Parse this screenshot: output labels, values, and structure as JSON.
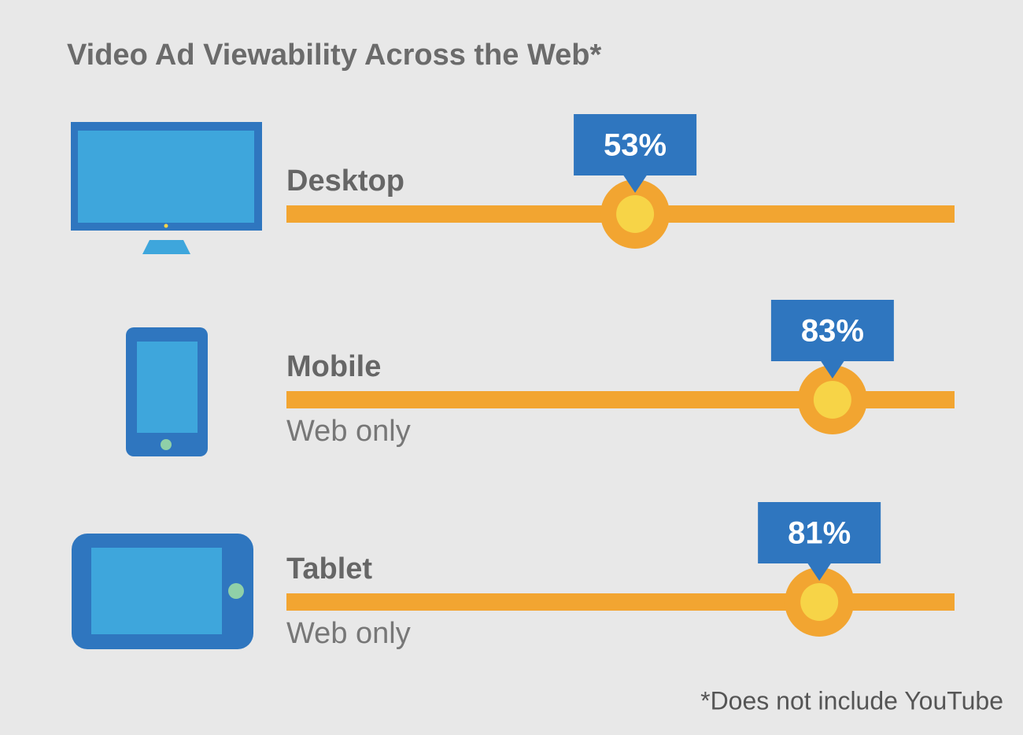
{
  "chart_data": {
    "type": "dot",
    "title": "Video Ad Viewability Across the Web*",
    "categories": [
      "Desktop",
      "Mobile",
      "Tablet"
    ],
    "notes": [
      null,
      "Web only",
      "Web only"
    ],
    "values": [
      53,
      83,
      81
    ],
    "value_labels": [
      "53%",
      "83%",
      "81%"
    ],
    "xlim": [
      0,
      100
    ],
    "track_color": "#f2a531",
    "dot_color": "#f7d447",
    "label_color": "#2f76bf",
    "footnote": "*Does not include YouTube"
  }
}
